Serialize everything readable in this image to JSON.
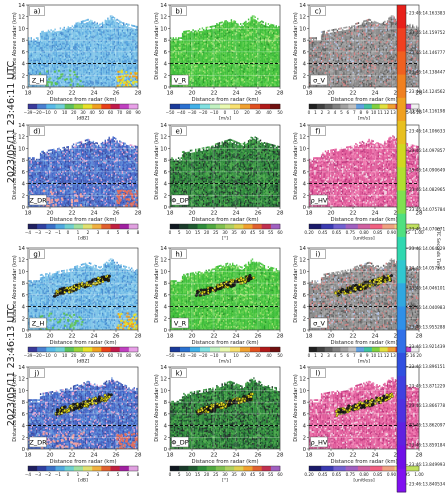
{
  "figure": {
    "row_group_labels": [
      "2023/05/11 23:46:11 UTC",
      "2023/05/11 23:46:13 UTC"
    ],
    "xlabel": "Distance from radar (km)",
    "ylabel": "Distance Above radar (km)",
    "dashed_line_km": 4,
    "right_colorbar": {
      "label": "UTC Seconds Time",
      "ticks": [
        "23:46:14.163383",
        "23:46:14.159752",
        "23:46:14.146777",
        "23:46:14.138447",
        "23:46:14.124562",
        "23:46:14.116198",
        "23:46:14.106633",
        "23:46:14.097857",
        "23:46:14.090649",
        "23:46:14.082965",
        "23:46:14.075784",
        "23:46:14.070071",
        "23:46:14.064029",
        "23:46:14.057365",
        "23:46:14.046101",
        "23:46:14.040983",
        "23:46:13.955288",
        "23:46:13.921439",
        "23:46:13.896151",
        "23:46:13.871229",
        "23:46:13.866778",
        "23:46:13.862097",
        "23:46:13.859184",
        "23:46:13.849993",
        "23:46:13.840534"
      ]
    },
    "colors": {
      "zh_low": "#7dc3e8",
      "vr_green": "#3fbf3a",
      "sigma_gray": "#8a8a8a",
      "zdr_blue": "#4466c8",
      "phi_green": "#2e8b3a",
      "rho_pink": "#e05a9a",
      "lightning": "#e8e020"
    }
  },
  "chart_data": {
    "type": "heatmap",
    "xlim": [
      18,
      28
    ],
    "ylim": [
      0,
      14
    ],
    "xticks": [
      "18",
      "20",
      "22",
      "24",
      "26",
      "28"
    ],
    "yticks": [
      "0",
      "2",
      "4",
      "6",
      "8",
      "10",
      "12",
      "14"
    ],
    "panels": [
      {
        "id": "a",
        "label": "a)",
        "var": "Z_H",
        "cbar": {
          "unit": "[dBZ]",
          "ticks": [
            "−39",
            "−20",
            "−10",
            "0",
            "10",
            "20",
            "30",
            "40",
            "50",
            "60",
            "70",
            "80",
            "90"
          ],
          "palette": "zh"
        }
      },
      {
        "id": "b",
        "label": "b)",
        "var": "V_R",
        "cbar": {
          "unit": "[m/s]",
          "ticks": [
            "−50",
            "−40",
            "−30",
            "−20",
            "−10",
            "0",
            "10",
            "20",
            "30",
            "40",
            "50"
          ],
          "palette": "vr"
        }
      },
      {
        "id": "c",
        "label": "c)",
        "var": "σ_V",
        "cbar": {
          "unit": "[m/s]",
          "ticks": [
            "0",
            "1",
            "2",
            "3",
            "4",
            "5",
            "6",
            "7",
            "8",
            "9",
            "10",
            "11",
            "12",
            "13",
            "14",
            "15",
            "16",
            "20"
          ],
          "palette": "sw"
        }
      },
      {
        "id": "d",
        "label": "d)",
        "var": "Z_DR",
        "cbar": {
          "unit": "[dB]",
          "ticks": [
            "−4",
            "−3",
            "−2",
            "−1",
            "0",
            "1",
            "2",
            "3",
            "4",
            "5",
            "6",
            "8"
          ],
          "palette": "zdr"
        }
      },
      {
        "id": "e",
        "label": "e)",
        "var": "Φ_DP",
        "cbar": {
          "unit": "[°]",
          "ticks": [
            "0",
            "5",
            "10",
            "15",
            "20",
            "25",
            "30",
            "35",
            "40",
            "45",
            "50",
            "55",
            "60"
          ],
          "palette": "phi"
        }
      },
      {
        "id": "f",
        "label": "f)",
        "var": "ρ_HV",
        "cbar": {
          "unit": "[unitless]",
          "ticks": [
            "0.20",
            "0.45",
            "0.65",
            "0.75",
            "0.80",
            "0.85",
            "0.90",
            "0.95",
            "1.00"
          ],
          "palette": "rho"
        }
      },
      {
        "id": "g",
        "label": "g)",
        "var": "Z_H",
        "cbar": {
          "unit": "[dBZ]",
          "ticks": [
            "−39",
            "−20",
            "−10",
            "0",
            "10",
            "20",
            "30",
            "40",
            "50",
            "60",
            "70",
            "80",
            "90"
          ],
          "palette": "zh"
        }
      },
      {
        "id": "h",
        "label": "h)",
        "var": "V_R",
        "cbar": {
          "unit": "[m/s]",
          "ticks": [
            "−50",
            "−40",
            "−30",
            "−20",
            "−10",
            "0",
            "10",
            "20",
            "30",
            "40",
            "50"
          ],
          "palette": "vr"
        }
      },
      {
        "id": "i",
        "label": "i)",
        "var": "σ_V",
        "cbar": {
          "unit": "[m/s]",
          "ticks": [
            "0",
            "1",
            "2",
            "3",
            "4",
            "5",
            "6",
            "7",
            "8",
            "9",
            "10",
            "11",
            "12",
            "13",
            "14",
            "15",
            "16",
            "20"
          ],
          "palette": "sw"
        }
      },
      {
        "id": "j",
        "label": "j)",
        "var": "Z_DR",
        "cbar": {
          "unit": "[dB]",
          "ticks": [
            "−4",
            "−3",
            "−2",
            "−1",
            "0",
            "1",
            "2",
            "3",
            "4",
            "5",
            "6",
            "8"
          ],
          "palette": "zdr"
        }
      },
      {
        "id": "k",
        "label": "k)",
        "var": "Φ_DP",
        "cbar": {
          "unit": "[°]",
          "ticks": [
            "0",
            "5",
            "10",
            "15",
            "20",
            "25",
            "30",
            "35",
            "40",
            "45",
            "50",
            "55",
            "60"
          ],
          "palette": "phi"
        }
      },
      {
        "id": "l",
        "label": "l)",
        "var": "ρ_HV",
        "cbar": {
          "unit": "[unitless]",
          "ticks": [
            "0.20",
            "0.45",
            "0.65",
            "0.75",
            "0.80",
            "0.85",
            "0.90",
            "0.95",
            "1.00"
          ],
          "palette": "rho"
        }
      }
    ]
  }
}
